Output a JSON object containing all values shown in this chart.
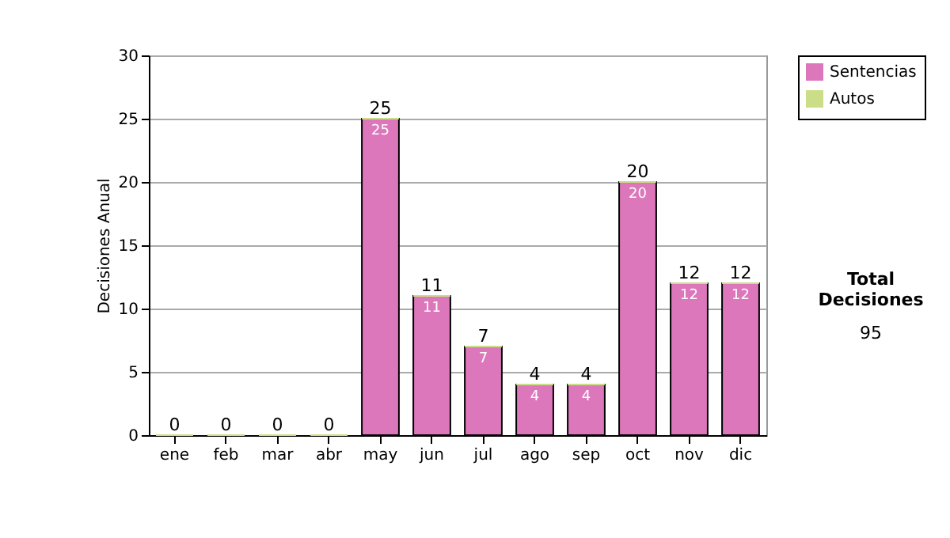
{
  "chart_data": {
    "type": "bar",
    "ylabel": "Decisiones Anual",
    "categories": [
      "ene",
      "feb",
      "mar",
      "abr",
      "may",
      "jun",
      "jul",
      "ago",
      "sep",
      "oct",
      "nov",
      "dic"
    ],
    "series": [
      {
        "name": "Sentencias",
        "color": "#dd77bb",
        "values": [
          0,
          0,
          0,
          0,
          25,
          11,
          7,
          4,
          4,
          20,
          12,
          12
        ],
        "value_labels": [
          null,
          null,
          null,
          null,
          "25",
          "11",
          "7",
          "4",
          "4",
          "20",
          "12",
          "12"
        ]
      },
      {
        "name": "Autos",
        "color": "#ccdd88",
        "values": [
          0,
          0,
          0,
          0,
          0,
          0,
          0,
          0,
          0,
          0,
          0,
          0
        ]
      }
    ],
    "stacked": true,
    "totals": [
      "0",
      "0",
      "0",
      "0",
      "25",
      "11",
      "7",
      "4",
      "4",
      "20",
      "12",
      "12"
    ],
    "ylim": [
      0,
      30
    ],
    "yticks": [
      0,
      5,
      10,
      15,
      20,
      25,
      30
    ],
    "grid": "y",
    "legend": "right",
    "annotations": [
      "Total Decisiones",
      "95"
    ]
  }
}
